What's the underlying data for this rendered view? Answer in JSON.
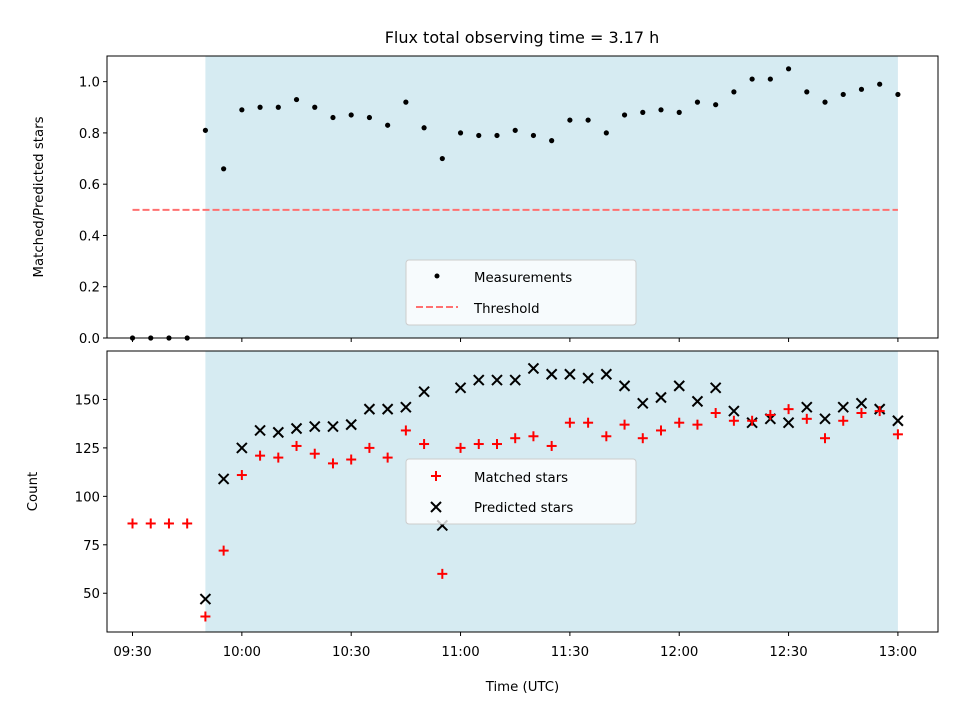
{
  "chart_data": [
    {
      "type": "scatter",
      "title": "Flux total observing time = 3.17 h",
      "xlabel": "",
      "ylabel": "Matched/Predicted stars",
      "ylim": [
        0,
        1.1
      ],
      "yticks": [
        "0.0",
        "0.2",
        "0.4",
        "0.6",
        "0.8",
        "1.0"
      ],
      "x_tick_labels_shown": false,
      "shaded_interval": [
        "09:50",
        "13:00"
      ],
      "shade_color": "#add8e6",
      "legend_position": "lower center",
      "series": [
        {
          "name": "Measurements",
          "marker": "dot",
          "color": "#000000",
          "x": [
            "09:30",
            "09:35",
            "09:40",
            "09:45",
            "09:50",
            "09:55",
            "10:00",
            "10:05",
            "10:10",
            "10:15",
            "10:20",
            "10:25",
            "10:30",
            "10:35",
            "10:40",
            "10:45",
            "10:50",
            "10:55",
            "11:00",
            "11:05",
            "11:10",
            "11:15",
            "11:20",
            "11:25",
            "11:30",
            "11:35",
            "11:40",
            "11:45",
            "11:50",
            "11:55",
            "12:00",
            "12:05",
            "12:10",
            "12:15",
            "12:20",
            "12:25",
            "12:30",
            "12:35",
            "12:40",
            "12:45",
            "12:50",
            "12:55",
            "13:00"
          ],
          "y": [
            0.0,
            0.0,
            0.0,
            0.0,
            0.81,
            0.66,
            0.89,
            0.9,
            0.9,
            0.93,
            0.9,
            0.86,
            0.87,
            0.86,
            0.83,
            0.92,
            0.82,
            0.7,
            0.8,
            0.79,
            0.79,
            0.81,
            0.79,
            0.77,
            0.85,
            0.85,
            0.8,
            0.87,
            0.88,
            0.89,
            0.88,
            0.92,
            0.91,
            0.96,
            1.01,
            1.01,
            1.05,
            0.96,
            0.92,
            0.95,
            0.97,
            0.99,
            0.95
          ]
        },
        {
          "name": "Threshold",
          "style": "dashed",
          "color": "#ff7070",
          "x": [
            "09:30",
            "13:00"
          ],
          "y": [
            0.5,
            0.5
          ]
        }
      ]
    },
    {
      "type": "scatter",
      "title": "",
      "xlabel": "Time (UTC)",
      "ylabel": "Count",
      "ylim": [
        30,
        175
      ],
      "xlim": [
        "09:23",
        "13:11"
      ],
      "xticks": [
        "09:30",
        "10:00",
        "10:30",
        "11:00",
        "11:30",
        "12:00",
        "12:30",
        "13:00"
      ],
      "yticks": [
        "50",
        "75",
        "100",
        "125",
        "150"
      ],
      "shaded_interval": [
        "09:50",
        "13:00"
      ],
      "shade_color": "#add8e6",
      "legend_position": "center",
      "series": [
        {
          "name": "Matched stars",
          "marker": "plus",
          "color": "#ff0000",
          "x": [
            "09:30",
            "09:35",
            "09:40",
            "09:45",
            "09:50",
            "09:55",
            "10:00",
            "10:05",
            "10:10",
            "10:15",
            "10:20",
            "10:25",
            "10:30",
            "10:35",
            "10:40",
            "10:45",
            "10:50",
            "10:55",
            "11:00",
            "11:05",
            "11:10",
            "11:15",
            "11:20",
            "11:25",
            "11:30",
            "11:35",
            "11:40",
            "11:45",
            "11:50",
            "11:55",
            "12:00",
            "12:05",
            "12:10",
            "12:15",
            "12:20",
            "12:25",
            "12:30",
            "12:35",
            "12:40",
            "12:45",
            "12:50",
            "12:55",
            "13:00"
          ],
          "y": [
            86,
            86,
            86,
            86,
            38,
            72,
            111,
            121,
            120,
            126,
            122,
            117,
            119,
            125,
            120,
            134,
            127,
            60,
            125,
            127,
            127,
            130,
            131,
            126,
            138,
            138,
            131,
            137,
            130,
            134,
            138,
            137,
            143,
            139,
            139,
            142,
            145,
            140,
            130,
            139,
            143,
            144,
            132
          ]
        },
        {
          "name": "Predicted stars",
          "marker": "x",
          "color": "#000000",
          "x": [
            "09:50",
            "09:55",
            "10:00",
            "10:05",
            "10:10",
            "10:15",
            "10:20",
            "10:25",
            "10:30",
            "10:35",
            "10:40",
            "10:45",
            "10:50",
            "10:55",
            "11:00",
            "11:05",
            "11:10",
            "11:15",
            "11:20",
            "11:25",
            "11:30",
            "11:35",
            "11:40",
            "11:45",
            "11:50",
            "11:55",
            "12:00",
            "12:05",
            "12:10",
            "12:15",
            "12:20",
            "12:25",
            "12:30",
            "12:35",
            "12:40",
            "12:45",
            "12:50",
            "12:55",
            "13:00"
          ],
          "y": [
            47,
            109,
            125,
            134,
            133,
            135,
            136,
            136,
            137,
            145,
            145,
            146,
            154,
            85,
            156,
            160,
            160,
            160,
            166,
            163,
            163,
            161,
            163,
            157,
            148,
            151,
            157,
            149,
            156,
            144,
            138,
            140,
            138,
            146,
            140,
            146,
            148,
            145,
            139
          ]
        }
      ]
    }
  ]
}
